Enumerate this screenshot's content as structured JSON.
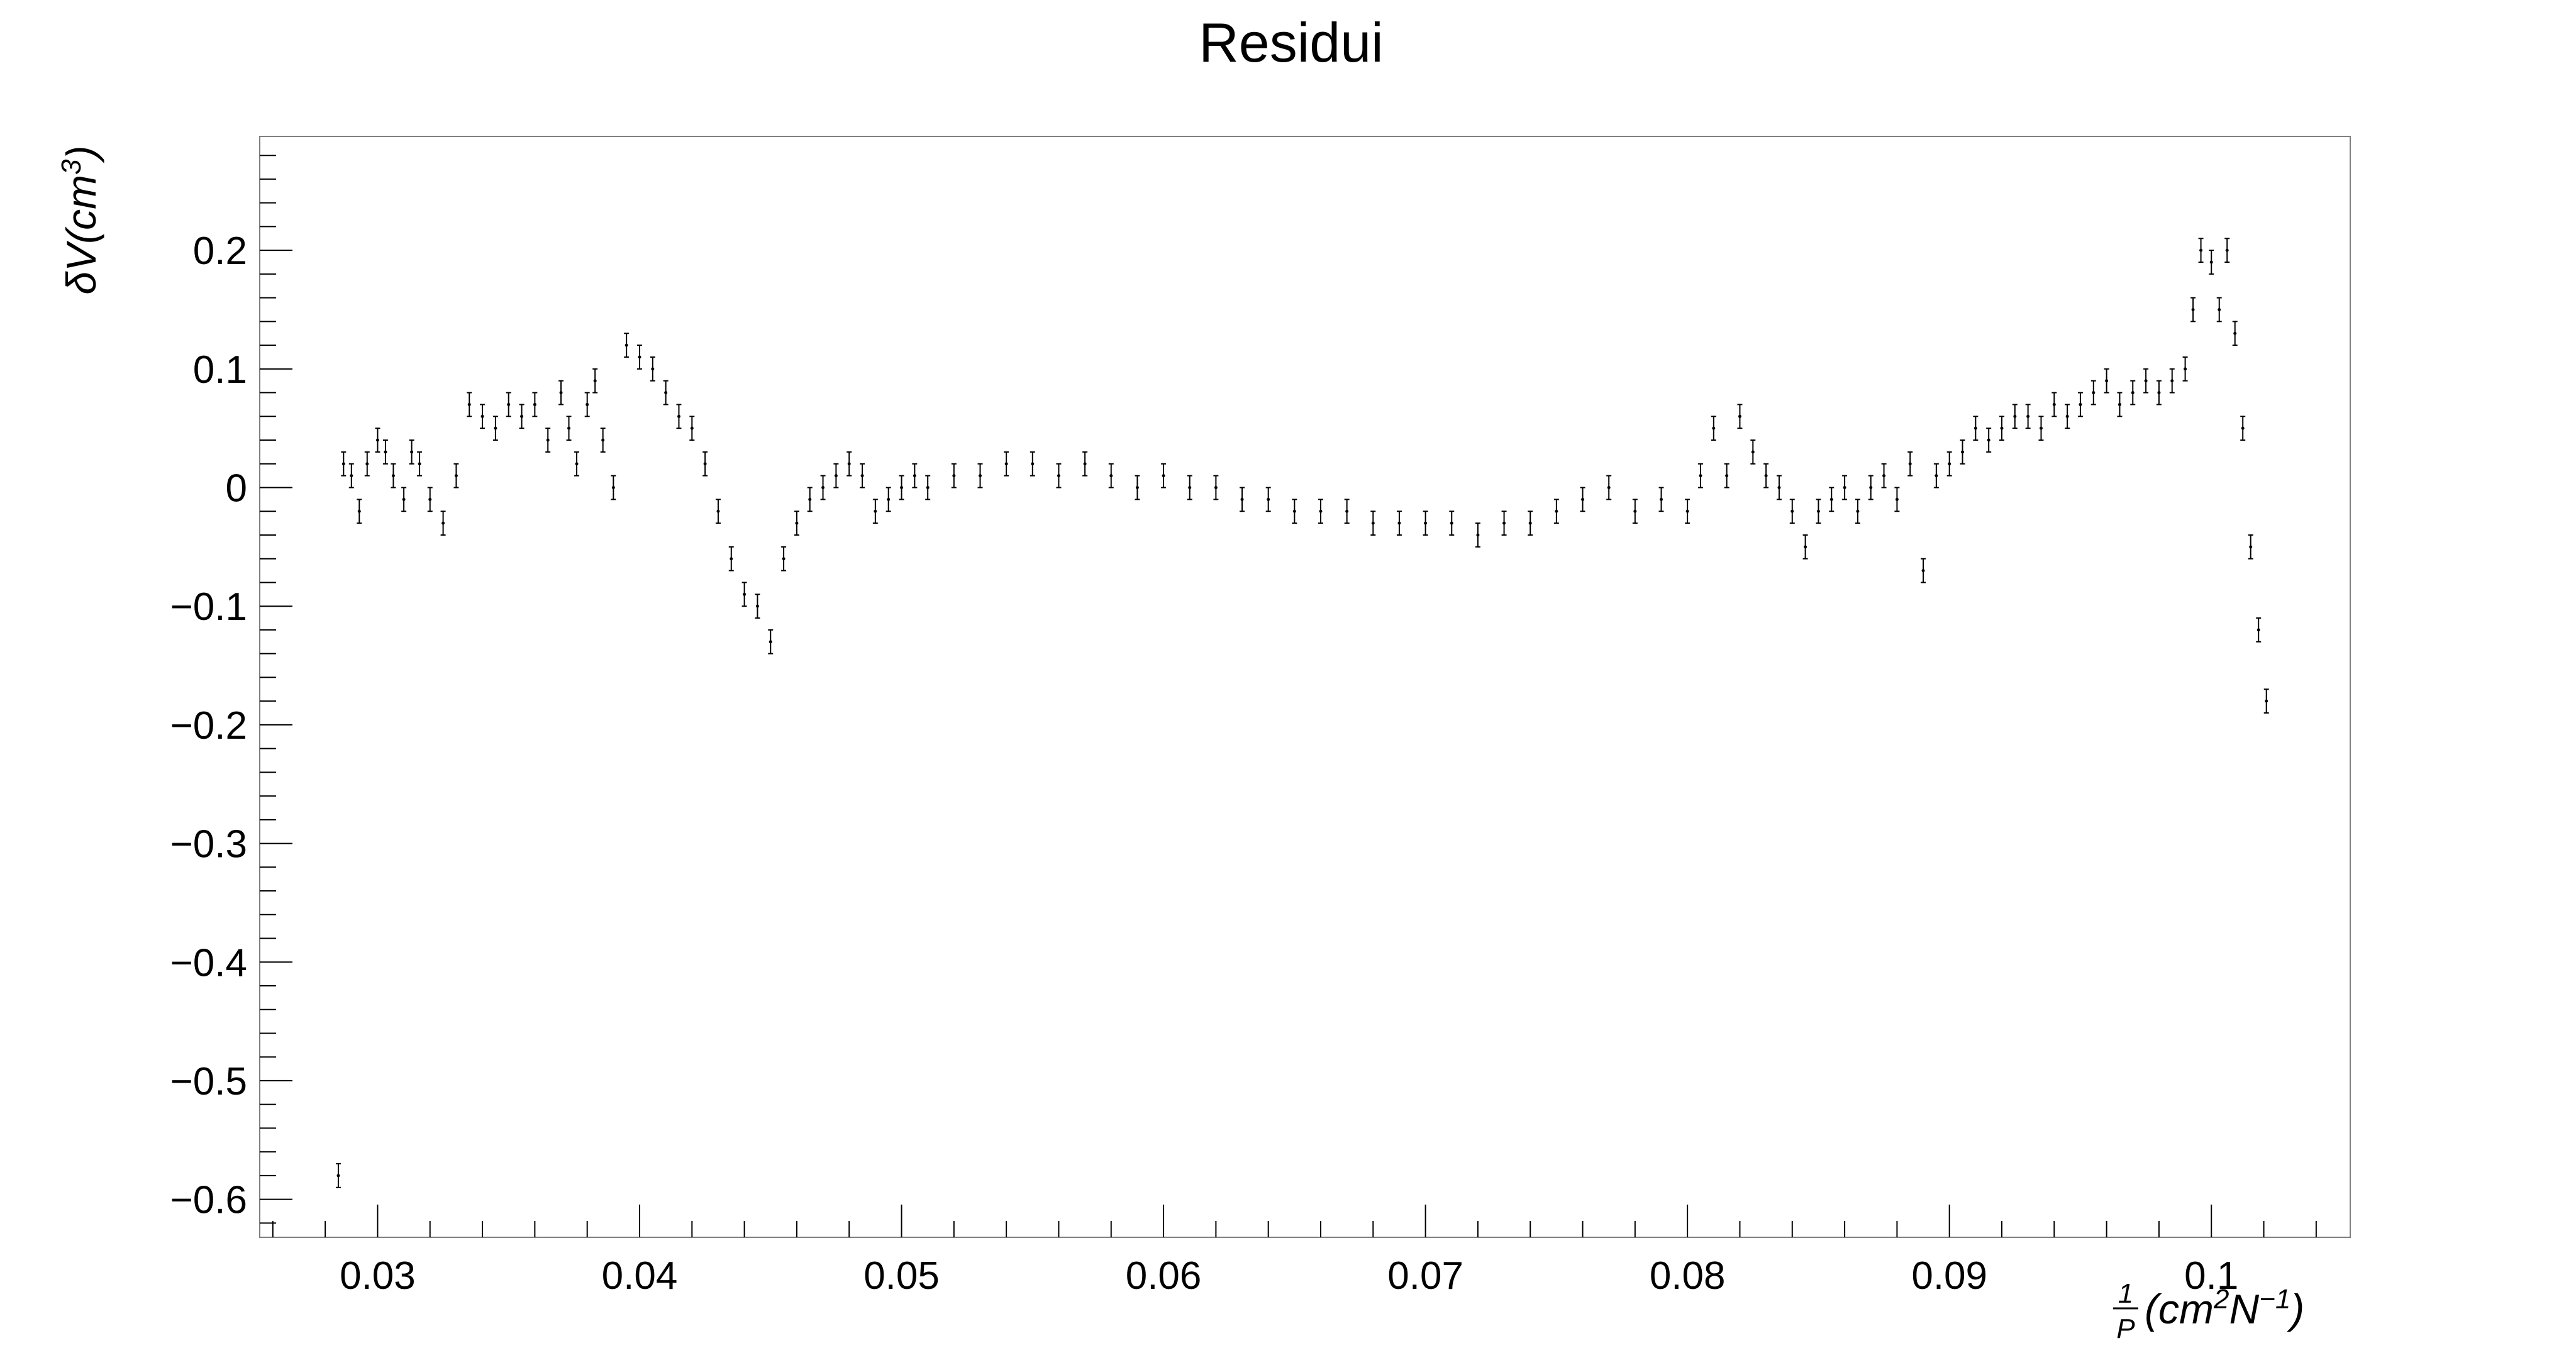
{
  "chart_data": {
    "type": "scatter",
    "title": "Residui",
    "xlabel": "1/P (cm^2 N^-1)",
    "ylabel": "δV(cm^3)",
    "xlabel_parts": {
      "num": "1",
      "den": "P",
      "unit_open": "(",
      "cm": "cm",
      "cm_exp": "2",
      "n": "N",
      "n_exp": "−1",
      "unit_close": ")"
    },
    "ylabel_parts": {
      "main": "δV(cm",
      "exp": "3",
      "close": ")"
    },
    "xlim": [
      0.0255,
      0.1053
    ],
    "ylim": [
      -0.632,
      0.296
    ],
    "grid": false,
    "x_ticks": [
      0.03,
      0.04,
      0.05,
      0.06,
      0.07,
      0.08,
      0.09,
      0.1
    ],
    "x_tick_labels": [
      "0.03",
      "0.04",
      "0.05",
      "0.06",
      "0.07",
      "0.08",
      "0.09",
      "0.1"
    ],
    "y_ticks": [
      0.2,
      0.1,
      0,
      -0.1,
      -0.2,
      -0.3,
      -0.4,
      -0.5,
      -0.6
    ],
    "y_tick_labels": [
      "0.2",
      "0.1",
      "0",
      "−0.1",
      "−0.2",
      "−0.3",
      "−0.4",
      "−0.5",
      "−0.6"
    ],
    "error_bar": 0.01,
    "series": [
      {
        "x": [
          0.0285,
          0.0287,
          0.029,
          0.0293,
          0.0296,
          0.03,
          0.0303,
          0.0306,
          0.031,
          0.0313,
          0.0316,
          0.032,
          0.0325,
          0.033,
          0.0335,
          0.034,
          0.0345,
          0.035,
          0.0355,
          0.036,
          0.0365,
          0.037,
          0.0373,
          0.0376,
          0.038,
          0.0383,
          0.0386,
          0.039,
          0.0395,
          0.04,
          0.0405,
          0.041,
          0.0415,
          0.042,
          0.0425,
          0.043,
          0.0435,
          0.044,
          0.0445,
          0.045,
          0.0455,
          0.046,
          0.0465,
          0.047,
          0.0475,
          0.048,
          0.0485,
          0.049,
          0.0495,
          0.05,
          0.0505,
          0.051,
          0.052,
          0.053,
          0.054,
          0.055,
          0.056,
          0.057,
          0.058,
          0.059,
          0.06,
          0.061,
          0.062,
          0.063,
          0.064,
          0.065,
          0.066,
          0.067,
          0.068,
          0.069,
          0.07,
          0.071,
          0.072,
          0.073,
          0.074,
          0.075,
          0.076,
          0.077,
          0.078,
          0.079,
          0.08,
          0.0805,
          0.081,
          0.0815,
          0.082,
          0.0825,
          0.083,
          0.0835,
          0.084,
          0.0845,
          0.085,
          0.0855,
          0.086,
          0.0865,
          0.087,
          0.0875,
          0.088,
          0.0885,
          0.089,
          0.0895,
          0.09,
          0.0905,
          0.091,
          0.0915,
          0.092,
          0.0925,
          0.093,
          0.0935,
          0.094,
          0.0945,
          0.095,
          0.0955,
          0.096,
          0.0965,
          0.097,
          0.0975,
          0.098,
          0.0985,
          0.099,
          0.0993,
          0.0996,
          0.1,
          0.1003,
          0.1006,
          0.1009,
          0.1012,
          0.1015,
          0.1018,
          0.1021
        ],
        "y": [
          -0.58,
          0.02,
          0.01,
          -0.02,
          0.02,
          0.04,
          0.03,
          0.01,
          -0.01,
          0.03,
          0.02,
          -0.01,
          -0.03,
          0.01,
          0.07,
          0.06,
          0.05,
          0.07,
          0.06,
          0.07,
          0.04,
          0.08,
          0.05,
          0.02,
          0.07,
          0.09,
          0.04,
          0.0,
          0.12,
          0.11,
          0.1,
          0.08,
          0.06,
          0.05,
          0.02,
          -0.02,
          -0.06,
          -0.09,
          -0.1,
          -0.13,
          -0.06,
          -0.03,
          -0.01,
          0.0,
          0.01,
          0.02,
          0.01,
          -0.02,
          -0.01,
          0.0,
          0.01,
          0.0,
          0.01,
          0.01,
          0.02,
          0.02,
          0.01,
          0.02,
          0.01,
          0.0,
          0.01,
          0.0,
          0.0,
          -0.01,
          -0.01,
          -0.02,
          -0.02,
          -0.02,
          -0.03,
          -0.03,
          -0.03,
          -0.03,
          -0.04,
          -0.03,
          -0.03,
          -0.02,
          -0.01,
          0.0,
          -0.02,
          -0.01,
          -0.02,
          0.01,
          0.05,
          0.01,
          0.06,
          0.03,
          0.01,
          0.0,
          -0.02,
          -0.05,
          -0.02,
          -0.01,
          0.0,
          -0.02,
          0.0,
          0.01,
          -0.01,
          0.02,
          -0.07,
          0.01,
          0.02,
          0.03,
          0.05,
          0.04,
          0.05,
          0.06,
          0.06,
          0.05,
          0.07,
          0.06,
          0.07,
          0.08,
          0.09,
          0.07,
          0.08,
          0.09,
          0.08,
          0.09,
          0.1,
          0.15,
          0.2,
          0.19,
          0.15,
          0.2,
          0.13,
          0.05,
          -0.05,
          -0.12,
          -0.18
        ]
      }
    ]
  }
}
